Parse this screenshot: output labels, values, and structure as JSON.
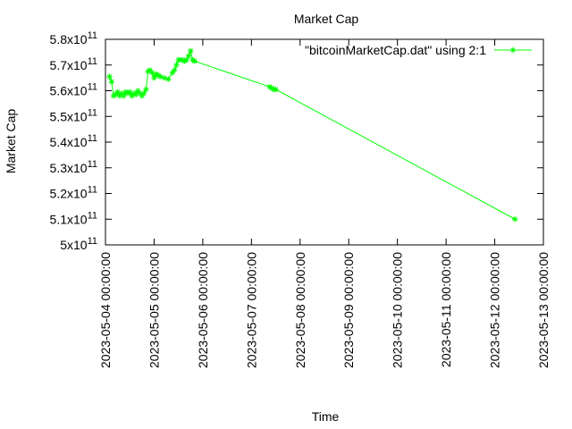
{
  "chart_data": {
    "type": "line",
    "title": "Market Cap",
    "xlabel": "Time",
    "ylabel": "Market Cap",
    "y_scale_base": "10",
    "y_scale_exp": "11",
    "ylim": [
      5.0,
      5.8
    ],
    "y_ticks": [
      {
        "value": 5.0,
        "mantissa": "5"
      },
      {
        "value": 5.1,
        "mantissa": "5.1"
      },
      {
        "value": 5.2,
        "mantissa": "5.2"
      },
      {
        "value": 5.3,
        "mantissa": "5.3"
      },
      {
        "value": 5.4,
        "mantissa": "5.4"
      },
      {
        "value": 5.5,
        "mantissa": "5.5"
      },
      {
        "value": 5.6,
        "mantissa": "5.6"
      },
      {
        "value": 5.7,
        "mantissa": "5.7"
      },
      {
        "value": 5.8,
        "mantissa": "5.8"
      }
    ],
    "xlim": [
      "2023-05-04 00:00:00",
      "2023-05-13 00:00:00"
    ],
    "x_ticks": [
      "2023-05-04 00:00:00",
      "2023-05-05 00:00:00",
      "2023-05-06 00:00:00",
      "2023-05-07 00:00:00",
      "2023-05-08 00:00:00",
      "2023-05-09 00:00:00",
      "2023-05-10 00:00:00",
      "2023-05-11 00:00:00",
      "2023-05-12 00:00:00",
      "2023-05-13 00:00:00"
    ],
    "grid": false,
    "legend_position": "top-right",
    "colors": {
      "series": "#00ff00",
      "axis": "#000000"
    },
    "series": [
      {
        "name": "\"bitcoinMarketCap.dat\" using 2:1",
        "marker": "star",
        "points": [
          {
            "x": "2023-05-04 02:00:00",
            "y": 5.655
          },
          {
            "x": "2023-05-04 03:00:00",
            "y": 5.635
          },
          {
            "x": "2023-05-04 04:00:00",
            "y": 5.58
          },
          {
            "x": "2023-05-04 05:00:00",
            "y": 5.585
          },
          {
            "x": "2023-05-04 06:00:00",
            "y": 5.595
          },
          {
            "x": "2023-05-04 07:00:00",
            "y": 5.58
          },
          {
            "x": "2023-05-04 08:00:00",
            "y": 5.59
          },
          {
            "x": "2023-05-04 09:00:00",
            "y": 5.58
          },
          {
            "x": "2023-05-04 10:00:00",
            "y": 5.595
          },
          {
            "x": "2023-05-04 11:00:00",
            "y": 5.59
          },
          {
            "x": "2023-05-04 12:00:00",
            "y": 5.595
          },
          {
            "x": "2023-05-04 13:00:00",
            "y": 5.58
          },
          {
            "x": "2023-05-04 14:00:00",
            "y": 5.59
          },
          {
            "x": "2023-05-04 15:00:00",
            "y": 5.585
          },
          {
            "x": "2023-05-04 16:00:00",
            "y": 5.6
          },
          {
            "x": "2023-05-04 17:00:00",
            "y": 5.59
          },
          {
            "x": "2023-05-04 18:00:00",
            "y": 5.58
          },
          {
            "x": "2023-05-04 19:00:00",
            "y": 5.59
          },
          {
            "x": "2023-05-04 20:00:00",
            "y": 5.605
          },
          {
            "x": "2023-05-04 21:00:00",
            "y": 5.675
          },
          {
            "x": "2023-05-04 22:00:00",
            "y": 5.68
          },
          {
            "x": "2023-05-04 23:00:00",
            "y": 5.67
          },
          {
            "x": "2023-05-05 00:00:00",
            "y": 5.65
          },
          {
            "x": "2023-05-05 01:00:00",
            "y": 5.665
          },
          {
            "x": "2023-05-05 02:00:00",
            "y": 5.66
          },
          {
            "x": "2023-05-05 03:00:00",
            "y": 5.655
          },
          {
            "x": "2023-05-05 05:00:00",
            "y": 5.65
          },
          {
            "x": "2023-05-05 07:00:00",
            "y": 5.645
          },
          {
            "x": "2023-05-05 09:00:00",
            "y": 5.67
          },
          {
            "x": "2023-05-05 10:00:00",
            "y": 5.68
          },
          {
            "x": "2023-05-05 11:00:00",
            "y": 5.7
          },
          {
            "x": "2023-05-05 12:00:00",
            "y": 5.72
          },
          {
            "x": "2023-05-05 13:00:00",
            "y": 5.72
          },
          {
            "x": "2023-05-05 14:00:00",
            "y": 5.72
          },
          {
            "x": "2023-05-05 15:00:00",
            "y": 5.715
          },
          {
            "x": "2023-05-05 16:00:00",
            "y": 5.72
          },
          {
            "x": "2023-05-05 17:00:00",
            "y": 5.735
          },
          {
            "x": "2023-05-05 18:00:00",
            "y": 5.755
          },
          {
            "x": "2023-05-05 19:00:00",
            "y": 5.72
          },
          {
            "x": "2023-05-05 20:00:00",
            "y": 5.715
          },
          {
            "x": "2023-05-07 09:00:00",
            "y": 5.615
          },
          {
            "x": "2023-05-07 10:00:00",
            "y": 5.61
          },
          {
            "x": "2023-05-07 11:00:00",
            "y": 5.605
          },
          {
            "x": "2023-05-07 12:00:00",
            "y": 5.605
          },
          {
            "x": "2023-05-12 10:00:00",
            "y": 5.1
          }
        ]
      }
    ]
  }
}
